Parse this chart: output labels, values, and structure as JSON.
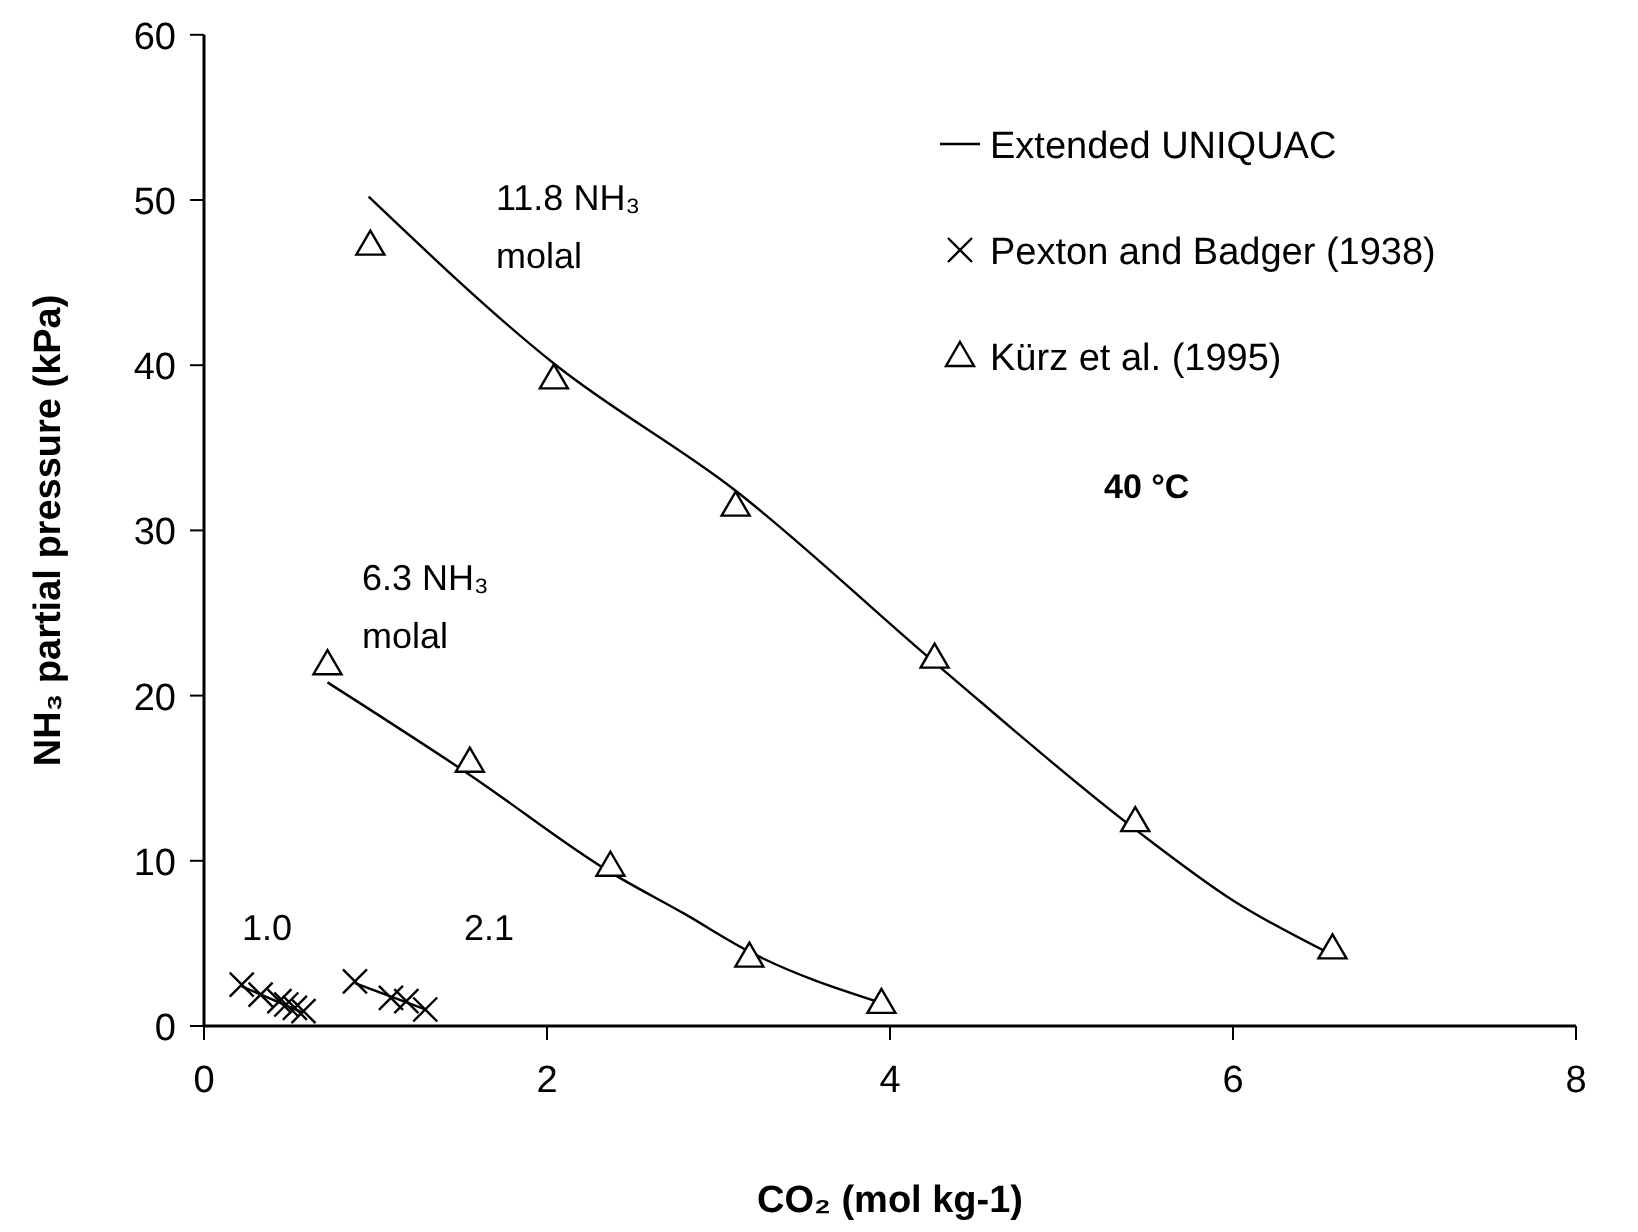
{
  "chart_data": {
    "type": "line",
    "xlabel": "CO₂ (mol kg-1)",
    "ylabel": "NH₃ partial pressure (kPa)",
    "xlim": [
      0,
      8
    ],
    "xticks": [
      0,
      2,
      4,
      6,
      8
    ],
    "ylim": [
      0,
      60
    ],
    "yticks": [
      0,
      10,
      20,
      30,
      40,
      50,
      60
    ],
    "grid": false,
    "legend": "top right",
    "line_style": "solid",
    "series": [
      {
        "name": "Extended UNIQUAC",
        "color": "#000000",
        "marker": "none",
        "x": [
          0.96,
          2.04,
          3.1,
          4.26,
          5.43,
          6,
          6.58
        ],
        "values": [
          50.2,
          40.1,
          32.4,
          22.0,
          11.9,
          7.6,
          4.3
        ]
      },
      {
        "color": "#000000",
        "marker": "none",
        "x": [
          0.72,
          1.55,
          2.37,
          2.8,
          3.18,
          3.95
        ],
        "values": [
          20.8,
          15.2,
          9.3,
          6.8,
          4.5,
          1.4
        ]
      },
      {
        "color": "#000000",
        "marker": "none",
        "x": [
          0.88,
          1.29
        ],
        "values": [
          2.6,
          1.0
        ]
      },
      {
        "color": "#000000",
        "marker": "none",
        "x": [
          0.22,
          0.58
        ],
        "values": [
          2.4,
          0.8
        ]
      },
      {
        "name": "Pexton and Badger (1938)",
        "type": "scatter",
        "color": "#000000",
        "marker": "cross",
        "x": [
          0.22,
          0.33,
          0.44,
          0.48,
          0.53,
          0.58,
          0.88,
          1.09,
          1.18,
          1.29
        ],
        "values": [
          2.5,
          1.9,
          1.5,
          1.3,
          1.1,
          0.9,
          2.7,
          1.7,
          1.5,
          1.0
        ]
      },
      {
        "name": "Kürz et al. (1995)",
        "type": "scatter",
        "color": "#000000",
        "marker": "triangle",
        "x": [
          0.97,
          2.04,
          3.1,
          4.26,
          5.43,
          6.58,
          0.72,
          1.55,
          2.37,
          3.18,
          3.95
        ],
        "values": [
          47.3,
          39.2,
          31.5,
          22.3,
          12.4,
          4.7,
          21.9,
          16.0,
          9.7,
          4.2,
          1.4
        ]
      }
    ],
    "annotations": [
      "11.8 NH₃\nmolal",
      "6.3 NH₃\nmolal",
      "1.0",
      "2.1",
      "40 °C"
    ]
  }
}
